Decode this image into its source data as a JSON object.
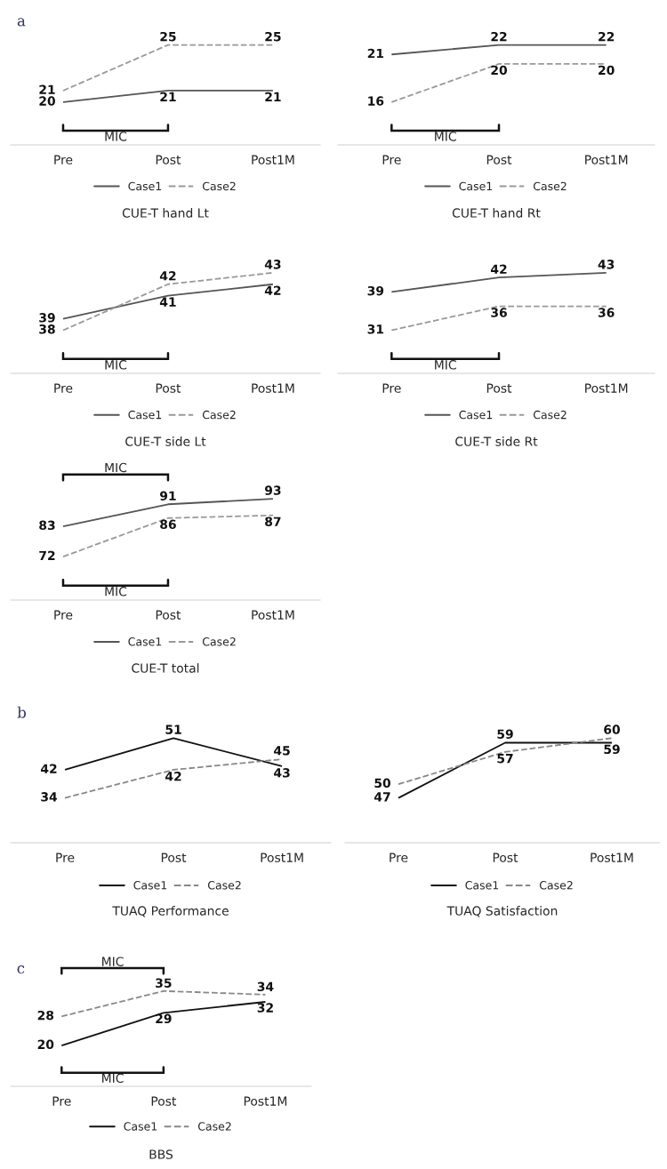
{
  "chart_data": [
    {
      "type": "line",
      "title": "CUE-T hand Lt",
      "subtitle": "a",
      "categories": [
        "Pre",
        "Post",
        "Post1M"
      ],
      "data_labels": true,
      "tick_labels": "x",
      "legend": "bottom",
      "grid": false,
      "annotations": [
        "MIC"
      ],
      "series": [
        {
          "name": "Case1",
          "color": "#555555",
          "line_style": "solid",
          "values": [
            20,
            21,
            21
          ]
        },
        {
          "name": "Case2",
          "color": "#999999",
          "line_style": "dashed",
          "values": [
            21,
            25,
            25
          ]
        }
      ]
    },
    {
      "type": "line",
      "title": "CUE-T hand Rt",
      "categories": [
        "Pre",
        "Post",
        "Post1M"
      ],
      "data_labels": true,
      "tick_labels": "x",
      "legend": "bottom",
      "grid": false,
      "annotations": [
        "MIC"
      ],
      "series": [
        {
          "name": "Case1",
          "color": "#555555",
          "line_style": "solid",
          "values": [
            21,
            22,
            22
          ]
        },
        {
          "name": "Case2",
          "color": "#999999",
          "line_style": "dashed",
          "values": [
            16,
            20,
            20
          ]
        }
      ]
    },
    {
      "type": "line",
      "title": "CUE-T side Lt",
      "categories": [
        "Pre",
        "Post",
        "Post1M"
      ],
      "data_labels": true,
      "tick_labels": "x",
      "legend": "bottom",
      "grid": false,
      "annotations": [
        "MIC"
      ],
      "series": [
        {
          "name": "Case1",
          "color": "#555555",
          "line_style": "solid",
          "values": [
            39,
            41,
            42
          ]
        },
        {
          "name": "Case2",
          "color": "#999999",
          "line_style": "dashed",
          "values": [
            38,
            42,
            43
          ]
        }
      ]
    },
    {
      "type": "line",
      "title": "CUE-T side Rt",
      "categories": [
        "Pre",
        "Post",
        "Post1M"
      ],
      "data_labels": true,
      "tick_labels": "x",
      "legend": "bottom",
      "grid": false,
      "annotations": [
        "MIC"
      ],
      "series": [
        {
          "name": "Case1",
          "color": "#555555",
          "line_style": "solid",
          "values": [
            39,
            42,
            43
          ]
        },
        {
          "name": "Case2",
          "color": "#999999",
          "line_style": "dashed",
          "values": [
            31,
            36,
            36
          ]
        }
      ]
    },
    {
      "type": "line",
      "title": "CUE-T total",
      "categories": [
        "Pre",
        "Post",
        "Post1M"
      ],
      "data_labels": true,
      "tick_labels": "x",
      "legend": "bottom",
      "grid": false,
      "annotations": [
        "MIC",
        "MIC"
      ],
      "series": [
        {
          "name": "Case1",
          "color": "#555555",
          "line_style": "solid",
          "values": [
            83,
            91,
            93
          ]
        },
        {
          "name": "Case2",
          "color": "#999999",
          "line_style": "dashed",
          "values": [
            72,
            86,
            87
          ]
        }
      ]
    },
    {
      "type": "line",
      "title": "TUAQ Performance",
      "subtitle": "b",
      "categories": [
        "Pre",
        "Post",
        "Post1M"
      ],
      "data_labels": true,
      "tick_labels": "x",
      "legend": "bottom",
      "grid": false,
      "series": [
        {
          "name": "Case1",
          "color": "#111111",
          "line_style": "solid",
          "values": [
            42,
            51,
            43
          ]
        },
        {
          "name": "Case2",
          "color": "#888888",
          "line_style": "dashed",
          "values": [
            34,
            42,
            45
          ]
        }
      ]
    },
    {
      "type": "line",
      "title": "TUAQ Satisfaction",
      "categories": [
        "Pre",
        "Post",
        "Post1M"
      ],
      "data_labels": true,
      "tick_labels": "x",
      "legend": "bottom",
      "grid": false,
      "series": [
        {
          "name": "Case1",
          "color": "#111111",
          "line_style": "solid",
          "values": [
            47,
            59,
            59
          ]
        },
        {
          "name": "Case2",
          "color": "#888888",
          "line_style": "dashed",
          "values": [
            50,
            57,
            60
          ]
        }
      ]
    },
    {
      "type": "line",
      "title": "BBS",
      "subtitle": "c",
      "categories": [
        "Pre",
        "Post",
        "Post1M"
      ],
      "data_labels": true,
      "tick_labels": "x",
      "legend": "bottom",
      "grid": false,
      "annotations": [
        "MIC",
        "MIC"
      ],
      "series": [
        {
          "name": "Case1",
          "color": "#111111",
          "line_style": "solid",
          "values": [
            20,
            29,
            32
          ]
        },
        {
          "name": "Case2",
          "color": "#888888",
          "line_style": "dashed",
          "values": [
            28,
            35,
            34
          ]
        }
      ]
    }
  ]
}
